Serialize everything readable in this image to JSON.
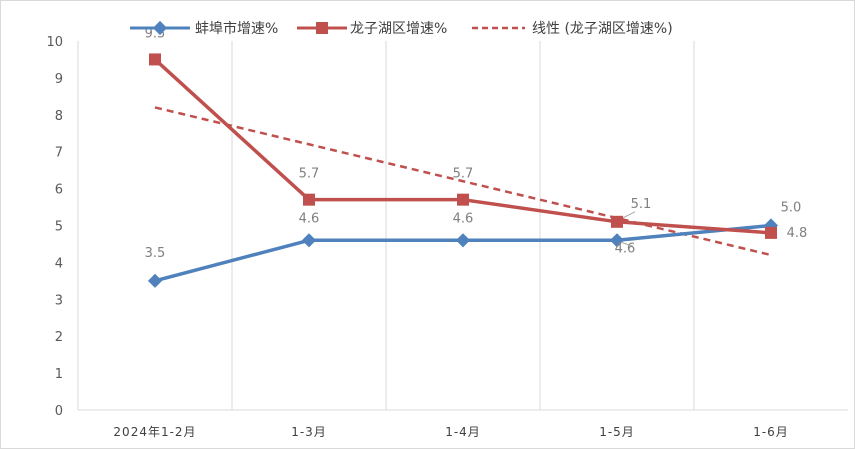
{
  "chart_data": {
    "type": "line",
    "categories": [
      "2024年1-2月",
      "1-3月",
      "1-4月",
      "1-5月",
      "1-6月"
    ],
    "ylim": [
      0,
      10
    ],
    "yticks": [
      "0",
      "1",
      "2",
      "3",
      "4",
      "5",
      "6",
      "7",
      "8",
      "9",
      "10"
    ],
    "grid": "vertical",
    "legend_position": "top",
    "series": [
      {
        "name": "蚌埠市增速%",
        "color": "#4f81bd",
        "marker": "diamond",
        "values": [
          3.5,
          4.6,
          4.6,
          4.6,
          5.0
        ],
        "labels": [
          "3.5",
          "4.6",
          "4.6",
          "4.6",
          "5.0"
        ]
      },
      {
        "name": "龙子湖区增速%",
        "color": "#c0504d",
        "marker": "square",
        "values": [
          9.5,
          5.7,
          5.7,
          5.1,
          4.8
        ],
        "labels": [
          "9.5",
          "5.7",
          "5.7",
          "5.1",
          "4.8"
        ]
      }
    ],
    "trendline": {
      "name": "线性 (龙子湖区增速%)",
      "color": "#c0504d",
      "style": "dashed",
      "start": 8.2,
      "end": 4.2
    }
  }
}
